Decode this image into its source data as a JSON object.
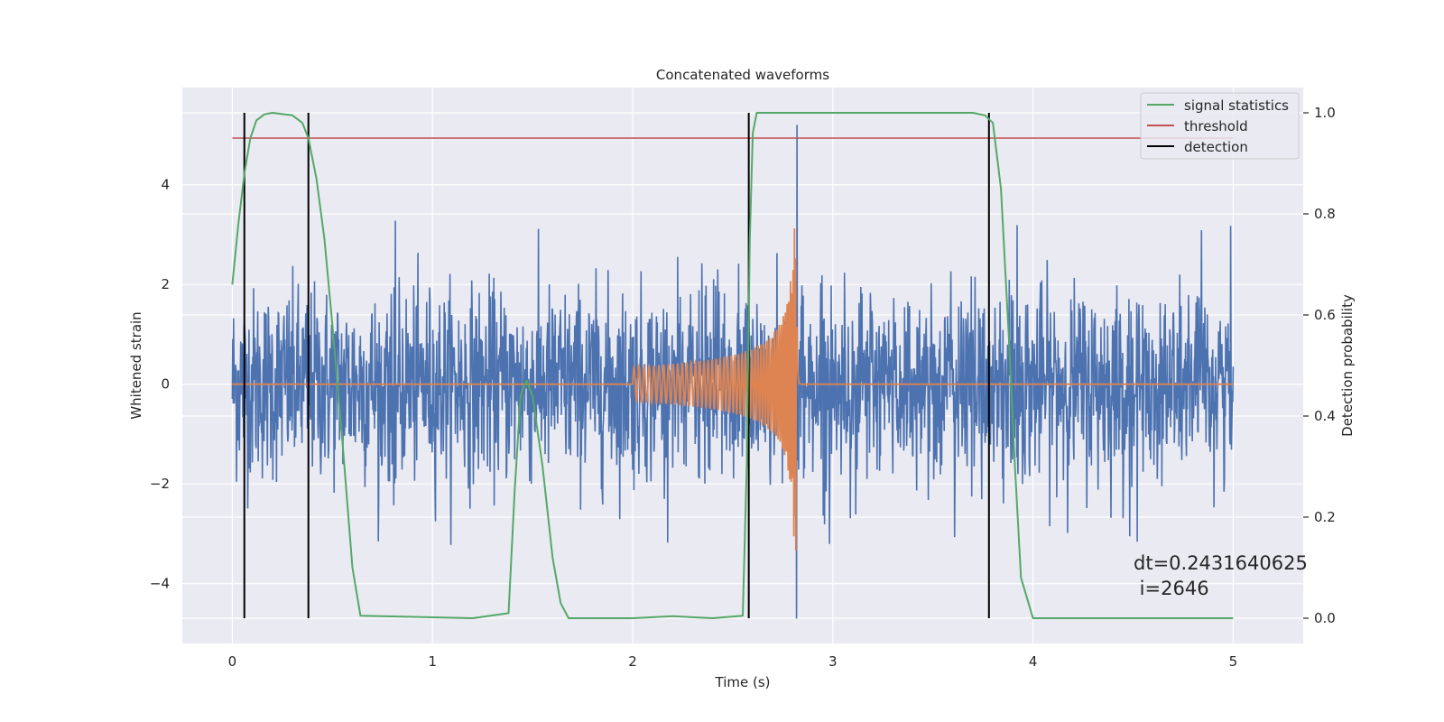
{
  "chart_data": {
    "type": "line",
    "title": "Concatenated waveforms",
    "xlabel": "Time (s)",
    "ylabel": "Whitened strain",
    "y2label": "Detection probability",
    "xlim": [
      -0.25,
      5.35
    ],
    "ylim": [
      -5.2,
      5.95
    ],
    "y2lim": [
      -0.05,
      1.05
    ],
    "x_ticks": [
      0,
      1,
      2,
      3,
      4,
      5
    ],
    "y_ticks": [
      -4,
      -2,
      0,
      2,
      4
    ],
    "y2_ticks": [
      0.0,
      0.2,
      0.4,
      0.6,
      0.8,
      1.0
    ],
    "x_tick_labels": [
      "0",
      "1",
      "2",
      "3",
      "4",
      "5"
    ],
    "y_tick_labels": [
      "−4",
      "−2",
      "0",
      "2",
      "4"
    ],
    "y2_tick_labels": [
      "0.0",
      "0.2",
      "0.4",
      "0.6",
      "0.8",
      "1.0"
    ],
    "grid": true,
    "legend_position": "top-right",
    "series": [
      {
        "name": "",
        "axis": "left",
        "kind": "noise",
        "color": "#4c72b0",
        "x_range": [
          0,
          5
        ],
        "std": 0.95,
        "max_abs_approx": 3.3,
        "events": [
          {
            "t": 2.82,
            "peak": 5.2
          },
          {
            "t": 2.82,
            "trough": -4.7
          }
        ]
      },
      {
        "name": "",
        "axis": "left",
        "kind": "chirp",
        "color": "#dd8452",
        "x_range": [
          0,
          5
        ],
        "chirp_start": 2.0,
        "merger_t": 2.82,
        "start_amp": 0.35,
        "peak_amp": 3.4,
        "trough": -3.6
      },
      {
        "name": "signal statistics",
        "axis": "right",
        "color": "#55a868",
        "x": [
          0.0,
          0.03,
          0.06,
          0.09,
          0.12,
          0.16,
          0.2,
          0.3,
          0.35,
          0.38,
          0.42,
          0.46,
          0.5,
          0.55,
          0.6,
          0.64,
          1.2,
          1.38,
          1.41,
          1.44,
          1.47,
          1.5,
          1.55,
          1.6,
          1.64,
          1.68,
          2.0,
          2.2,
          2.4,
          2.55,
          2.57,
          2.585,
          2.6,
          2.62,
          2.7,
          3.7,
          3.76,
          3.8,
          3.84,
          3.88,
          3.91,
          3.94,
          4.0,
          5.0
        ],
        "y": [
          0.66,
          0.78,
          0.88,
          0.95,
          0.985,
          0.997,
          1.0,
          0.995,
          0.98,
          0.95,
          0.87,
          0.75,
          0.58,
          0.35,
          0.1,
          0.005,
          0.0,
          0.01,
          0.25,
          0.44,
          0.47,
          0.44,
          0.3,
          0.12,
          0.03,
          0.0,
          0.0,
          0.004,
          0.0,
          0.005,
          0.3,
          0.75,
          0.96,
          1.0,
          1.0,
          1.0,
          0.995,
          0.98,
          0.85,
          0.55,
          0.3,
          0.08,
          0.0,
          0.0
        ]
      },
      {
        "name": "threshold",
        "axis": "right",
        "color": "#c44e52",
        "x": [
          0,
          5
        ],
        "y": [
          0.95,
          0.95
        ]
      }
    ],
    "detection": {
      "name": "detection",
      "color": "#000000",
      "x": [
        0.06,
        0.38,
        2.58,
        3.78
      ]
    },
    "annotation": {
      "line1": "dt=0.2431640625",
      "line2": " i=2646"
    }
  }
}
